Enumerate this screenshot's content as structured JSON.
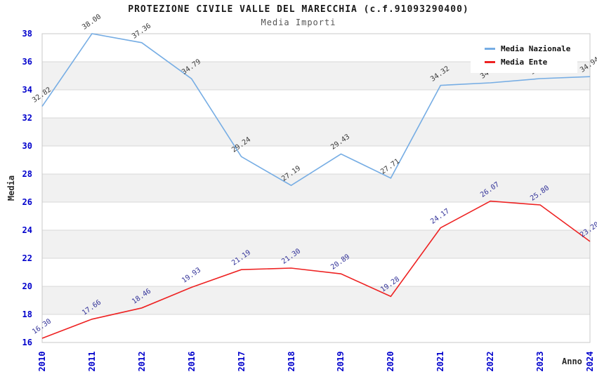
{
  "title": "PROTEZIONE CIVILE VALLE DEL MARECCHIA (c.f.91093290400)",
  "subtitle": "Media Importi",
  "axes": {
    "ylabel": "Media",
    "xlabel": "Anno",
    "ytick_labels": [
      "16",
      "18",
      "20",
      "22",
      "24",
      "26",
      "28",
      "30",
      "32",
      "34",
      "36",
      "38"
    ],
    "tick_color": "#0000cc",
    "gridline_color": "#d8d8d8",
    "band_color": "#f1f1f1",
    "border_color": "#c8c8c8"
  },
  "legend": {
    "items": [
      {
        "label": "Media Nazionale",
        "color": "#76ade4"
      },
      {
        "label": "Media Ente",
        "color": "#ee2222"
      }
    ]
  },
  "chart_data": {
    "type": "line",
    "title": "PROTEZIONE CIVILE VALLE DEL MARECCHIA (c.f.91093290400)",
    "subtitle": "Media Importi",
    "xlabel": "Anno",
    "ylabel": "Media",
    "ylim": [
      16,
      38
    ],
    "ytick_step": 2,
    "grid": "horizontal-bands",
    "legend_position": "top-right-inside",
    "categories": [
      "2010",
      "2011",
      "2012",
      "2016",
      "2017",
      "2018",
      "2019",
      "2020",
      "2021",
      "2022",
      "2023",
      "2024"
    ],
    "series": [
      {
        "name": "Media Nazionale",
        "color": "#76ade4",
        "label_color": "#3a3a3a",
        "values": [
          32.82,
          38.0,
          37.36,
          34.79,
          29.24,
          27.19,
          29.43,
          27.71,
          34.32,
          34.5,
          34.8,
          34.94
        ],
        "point_labels": [
          "32.82",
          "38.00",
          "37.36",
          "34.79",
          "29.24",
          "27.19",
          "29.43",
          "27.71",
          "34.32",
          "34.50",
          "34.80",
          "34.94"
        ],
        "note": "2022 and 2023 point labels are mostly hidden behind the legend box"
      },
      {
        "name": "Media Ente",
        "color": "#ee2222",
        "label_color": "#333399",
        "values": [
          16.3,
          17.66,
          18.46,
          19.93,
          21.19,
          21.3,
          20.89,
          19.28,
          24.17,
          26.07,
          25.8,
          23.2
        ],
        "point_labels": [
          "16.30",
          "17.66",
          "18.46",
          "19.93",
          "21.19",
          "21.30",
          "20.89",
          "19.28",
          "24.17",
          "26.07",
          "25.80",
          "23.20"
        ]
      }
    ]
  }
}
